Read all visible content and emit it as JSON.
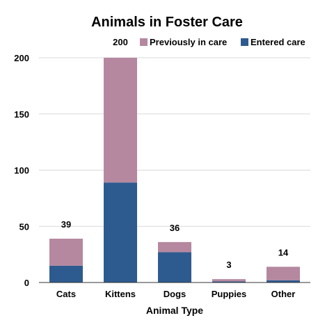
{
  "chart_data": {
    "type": "bar",
    "stacked": true,
    "title": "Animals in Foster Care",
    "xlabel": "Animal Type",
    "ylabel": "",
    "ylim": [
      0,
      200
    ],
    "yticks": [
      0,
      50,
      100,
      150,
      200
    ],
    "grid": true,
    "legend_position": "top-right",
    "categories": [
      "Cats",
      "Kittens",
      "Dogs",
      "Puppies",
      "Other"
    ],
    "series": [
      {
        "name": "Entered care",
        "color": "#2e5b8f",
        "values": [
          15,
          89,
          27,
          1,
          2
        ]
      },
      {
        "name": "Previously in care",
        "color": "#b5889f",
        "values": [
          24,
          111,
          9,
          2,
          12
        ]
      }
    ],
    "legend_order": [
      "Previously in care",
      "Entered care"
    ],
    "totals": [
      "39",
      "200",
      "36",
      "3",
      "14"
    ]
  }
}
